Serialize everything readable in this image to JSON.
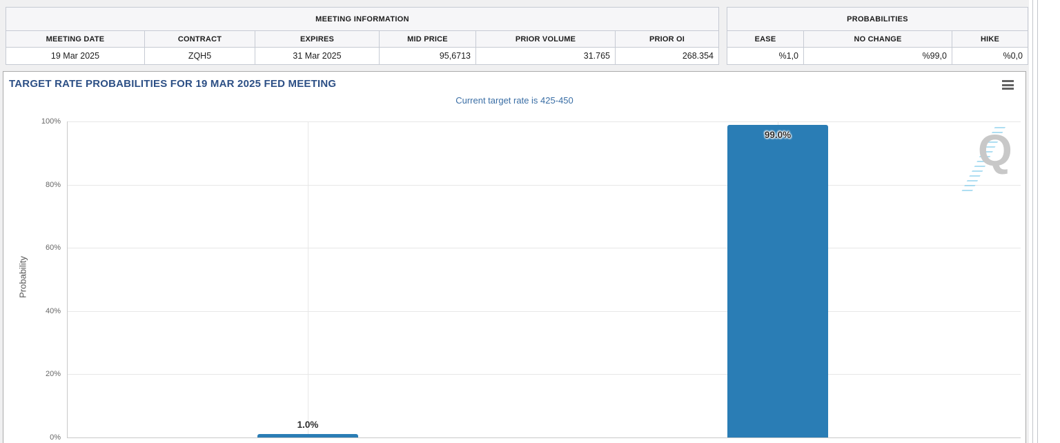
{
  "meeting_info": {
    "title": "MEETING INFORMATION",
    "columns": [
      "MEETING DATE",
      "CONTRACT",
      "EXPIRES",
      "MID PRICE",
      "PRIOR VOLUME",
      "PRIOR OI"
    ],
    "values": [
      "19 Mar 2025",
      "ZQH5",
      "31 Mar 2025",
      "95,6713",
      "31.765",
      "268.354"
    ]
  },
  "probabilities": {
    "title": "PROBABILITIES",
    "columns": [
      "EASE",
      "NO CHANGE",
      "HIKE"
    ],
    "values": [
      "%1,0",
      "%99,0",
      "%0,0"
    ]
  },
  "chart": {
    "title": "TARGET RATE PROBABILITIES FOR 19 MAR 2025 FED MEETING",
    "subtitle": "Current target rate is 425-450",
    "menu_icon": "hamburger-icon",
    "watermark_letter": "Q"
  },
  "chart_data": {
    "type": "bar",
    "title": "TARGET RATE PROBABILITIES FOR 19 MAR 2025 FED MEETING",
    "subtitle": "Current target rate is 425-450",
    "xlabel": "",
    "ylabel": "Probability",
    "ylim": [
      0,
      100
    ],
    "yticks": [
      0,
      20,
      40,
      60,
      80,
      100
    ],
    "ytick_labels": [
      "0%",
      "20%",
      "40%",
      "60%",
      "80%",
      "100%"
    ],
    "grid": true,
    "legend": false,
    "series": [
      {
        "name": "Probability",
        "values": [
          1.0,
          99.0
        ],
        "labels": [
          "1.0%",
          "99.0%"
        ]
      }
    ],
    "bar_color": "#2a7db5"
  },
  "colors": {
    "bar": "#2a7db5",
    "chart_title": "#2c4f85",
    "chart_subtitle": "#3a6ea5",
    "table_border": "#c6cad3"
  }
}
